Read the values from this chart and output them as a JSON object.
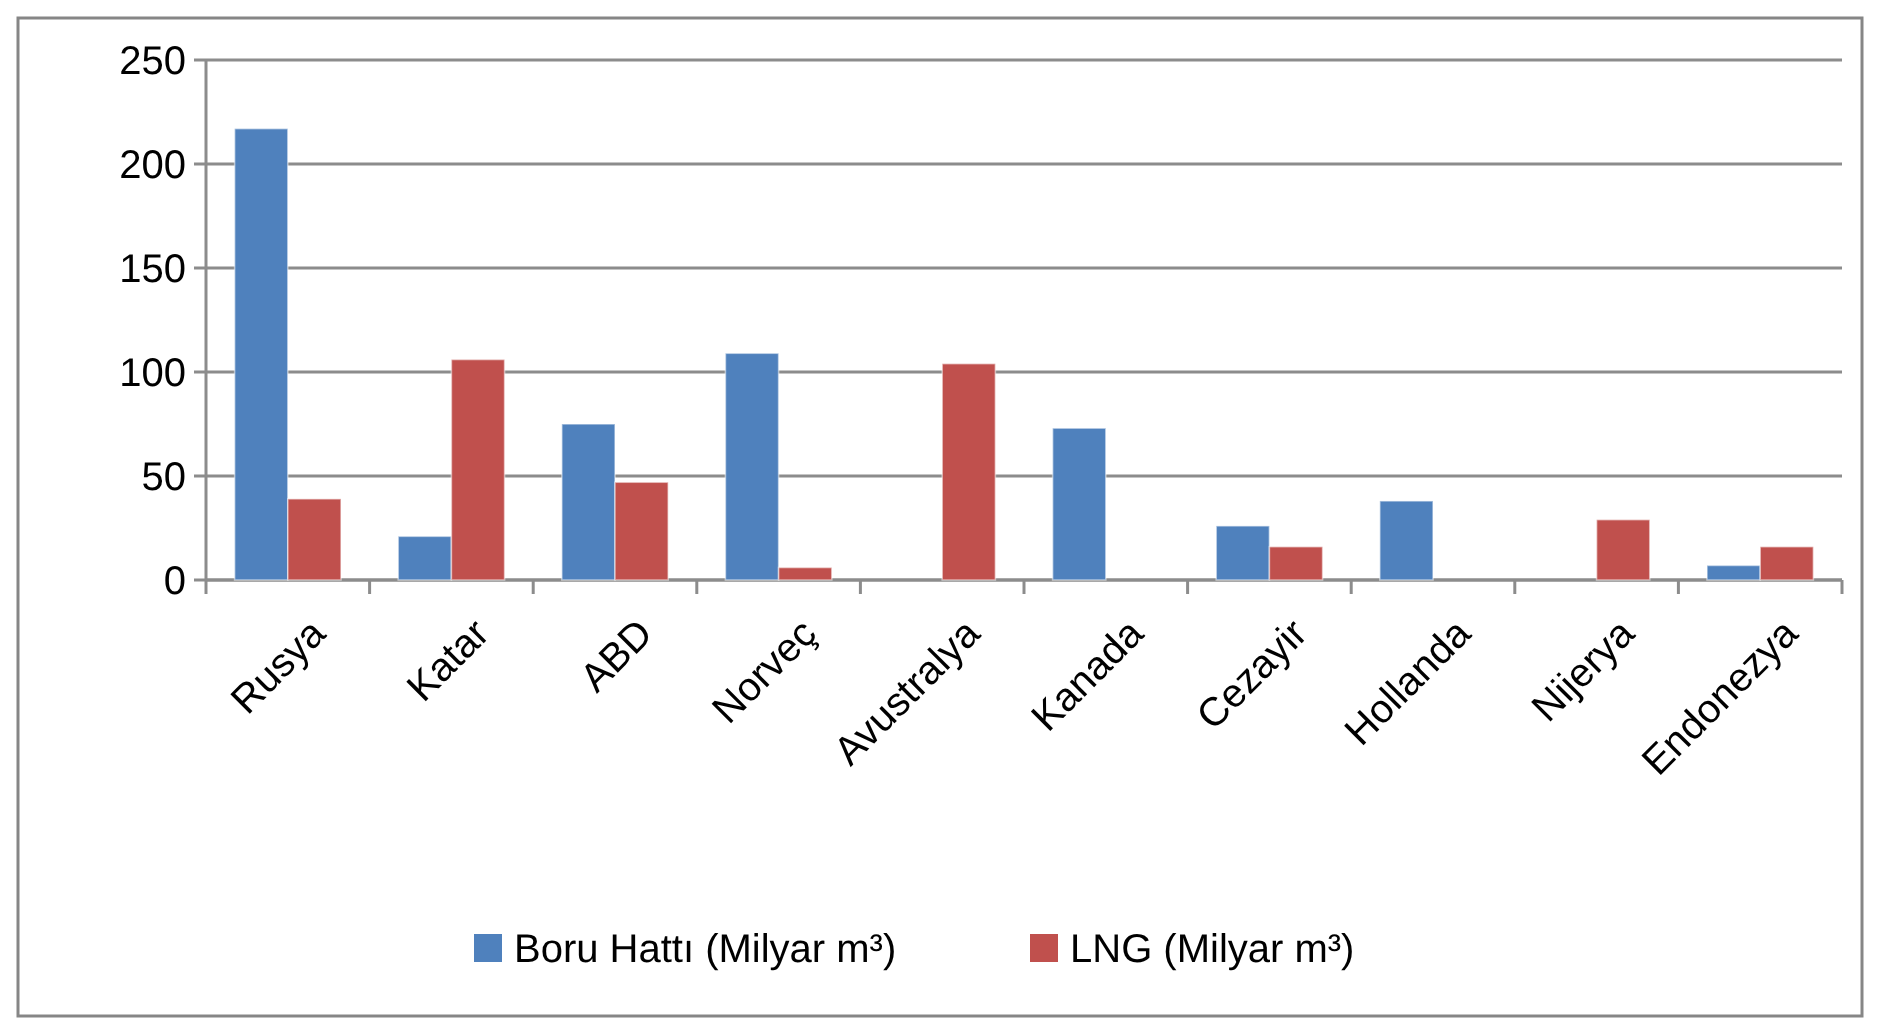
{
  "chart_data": {
    "type": "bar",
    "categories": [
      "Rusya",
      "Katar",
      "ABD",
      "Norveç",
      "Avustralya",
      "Kanada",
      "Cezayir",
      "Hollanda",
      "Nijerya",
      "Endonezya"
    ],
    "series": [
      {
        "name": "Boru Hattı (Milyar m³)",
        "color": "#4f81bd",
        "values": [
          217,
          21,
          75,
          109,
          0,
          73,
          26,
          38,
          0,
          7
        ]
      },
      {
        "name": "LNG (Milyar m³)",
        "color": "#c0504d",
        "values": [
          39,
          106,
          47,
          6,
          104,
          0,
          16,
          0,
          29,
          16
        ]
      }
    ],
    "ylim": [
      0,
      250
    ],
    "yticks": [
      0,
      50,
      100,
      150,
      200,
      250
    ],
    "grid": "y",
    "legend": "bottom"
  }
}
